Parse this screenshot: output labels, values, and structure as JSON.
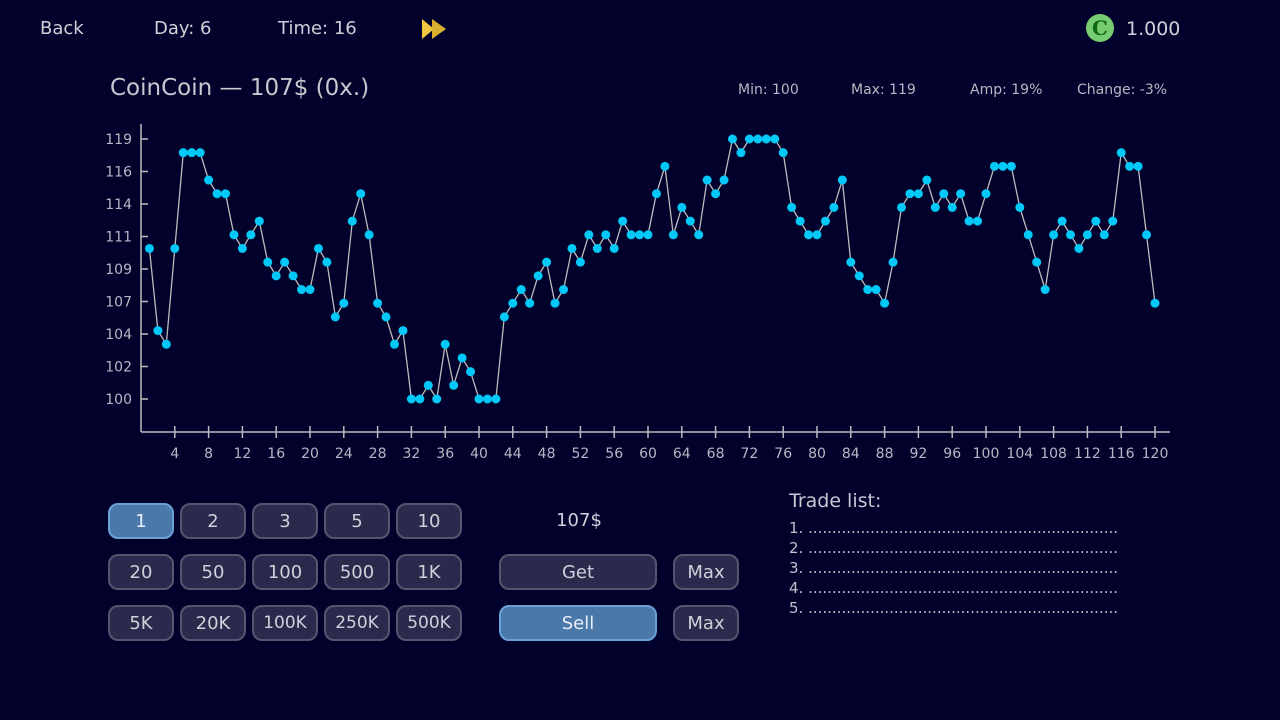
{
  "topbar": {
    "back_label": "Back",
    "day_label": "Day: 6",
    "time_label": "Time: 16",
    "fast_forward_icon": "fast-forward-icon",
    "coin_icon": "coin-icon",
    "coin_glyph": "C",
    "balance": "1.000"
  },
  "header": {
    "title": "CoinCoin — 107$ (0x.)",
    "min": "Min: 100",
    "max": "Max: 119",
    "amp": "Amp: 19%",
    "change": "Change: -3%"
  },
  "colors": {
    "background": "#02012b",
    "dot": "#00c8f8",
    "line": "#bdbdbd",
    "accent": "#4a78a8",
    "fast_forward": "#f0c040",
    "coin": "#78cc70"
  },
  "chart_data": {
    "type": "line",
    "x": [
      1,
      2,
      3,
      4,
      5,
      6,
      7,
      8,
      9,
      10,
      11,
      12,
      13,
      14,
      15,
      16,
      17,
      18,
      19,
      20,
      21,
      22,
      23,
      24,
      25,
      26,
      27,
      28,
      29,
      30,
      31,
      32,
      33,
      34,
      35,
      36,
      37,
      38,
      39,
      40,
      41,
      42,
      43,
      44,
      45,
      46,
      47,
      48,
      49,
      50,
      51,
      52,
      53,
      54,
      55,
      56,
      57,
      58,
      59,
      60,
      61,
      62,
      63,
      64,
      65,
      66,
      67,
      68,
      69,
      70,
      71,
      72,
      73,
      74,
      75,
      76,
      77,
      78,
      79,
      80,
      81,
      82,
      83,
      84,
      85,
      86,
      87,
      88,
      89,
      90,
      91,
      92,
      93,
      94,
      95,
      96,
      97,
      98,
      99,
      100,
      101,
      102,
      103,
      104,
      105,
      106,
      107,
      108,
      109,
      110,
      111,
      112,
      113,
      114,
      115,
      116,
      117,
      118,
      119,
      120
    ],
    "values": [
      111,
      105,
      104,
      111,
      118,
      118,
      118,
      116,
      115,
      115,
      112,
      111,
      112,
      113,
      110,
      109,
      110,
      109,
      108,
      108,
      111,
      110,
      106,
      107,
      113,
      115,
      112,
      107,
      106,
      104,
      105,
      100,
      100,
      101,
      100,
      104,
      101,
      103,
      102,
      100,
      100,
      100,
      106,
      107,
      108,
      107,
      109,
      110,
      107,
      108,
      111,
      110,
      112,
      111,
      112,
      111,
      113,
      112,
      112,
      112,
      115,
      117,
      112,
      114,
      113,
      112,
      116,
      115,
      116,
      119,
      118,
      119,
      119,
      119,
      119,
      118,
      114,
      113,
      112,
      112,
      113,
      114,
      116,
      110,
      109,
      108,
      108,
      107,
      110,
      114,
      115,
      115,
      116,
      114,
      115,
      114,
      115,
      113,
      113,
      115,
      117,
      117,
      117,
      114,
      112,
      110,
      108,
      112,
      113,
      112,
      111,
      112,
      113,
      112,
      113,
      118,
      117,
      117,
      112,
      107
    ],
    "xticks": [
      4,
      8,
      12,
      16,
      20,
      24,
      28,
      32,
      36,
      40,
      44,
      48,
      52,
      56,
      60,
      64,
      68,
      72,
      76,
      80,
      84,
      88,
      92,
      96,
      100,
      104,
      108,
      112,
      116,
      120
    ],
    "yticks": [
      "100",
      "102",
      "104",
      "107",
      "109",
      "111",
      "114",
      "116",
      "119"
    ],
    "ylim": [
      100,
      119
    ],
    "xlim": [
      0,
      121
    ],
    "grid": false
  },
  "amounts": {
    "options": [
      "1",
      "2",
      "3",
      "5",
      "10",
      "20",
      "50",
      "100",
      "500",
      "1K",
      "5K",
      "20K",
      "100K",
      "250K",
      "500K"
    ],
    "selected": "1"
  },
  "trade": {
    "price": "107$",
    "get_label": "Get",
    "sell_label": "Sell",
    "max_label": "Max",
    "active_action": "Sell"
  },
  "trade_list": {
    "title": "Trade list:",
    "items": [
      "1. ..........................................................................................",
      "2. ..........................................................................................",
      "3. ..........................................................................................",
      "4. ..........................................................................................",
      "5. .........................................................................................."
    ]
  }
}
